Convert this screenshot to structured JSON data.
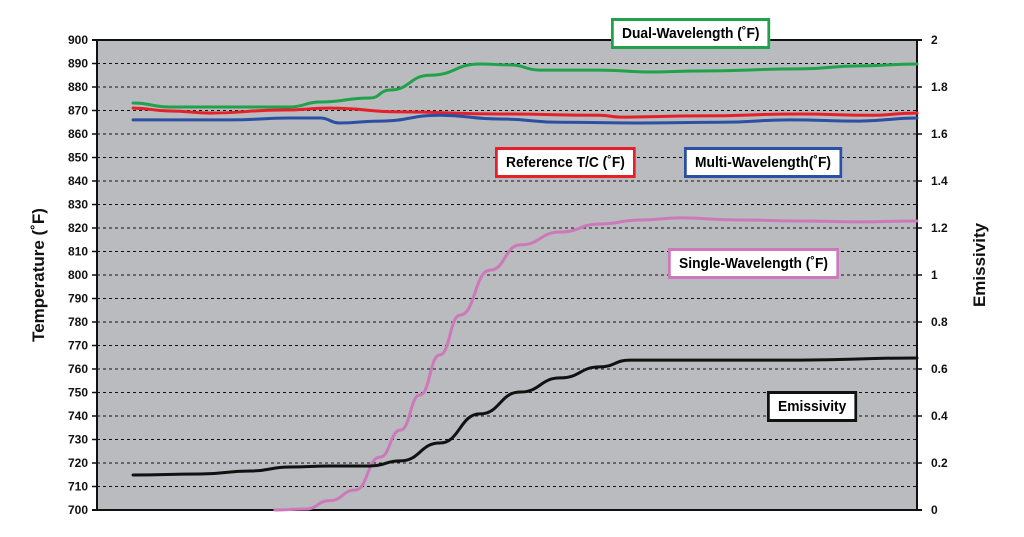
{
  "chart_data": {
    "type": "line",
    "ylabel": "Temperature (˚F)",
    "y2label": "Emissivity",
    "ylim": [
      700,
      900
    ],
    "y2lim": [
      0,
      2
    ],
    "yticks": [
      "700",
      "710",
      "720",
      "730",
      "740",
      "750",
      "760",
      "770",
      "780",
      "790",
      "800",
      "810",
      "820",
      "830",
      "840",
      "850",
      "860",
      "870",
      "880",
      "890",
      "900"
    ],
    "y2ticks": [
      "0",
      "0.2",
      "0.4",
      "0.6",
      "0.8",
      "1",
      "1.2",
      "1.4",
      "1.6",
      "1.8",
      "2"
    ],
    "xlim": [
      0,
      100
    ],
    "grid": "horizontal dashed",
    "background": "#b9bbbe",
    "series": [
      {
        "name": "Dual-Wavelength (˚F)",
        "color": "#1fa24a",
        "axis": "left",
        "x": [
          4.4,
          8.9,
          18.7,
          23.5,
          27.2,
          33.3,
          35.7,
          40.6,
          46.7,
          50.4,
          54,
          61.3,
          67.4,
          73.5,
          85.7,
          93,
          100
        ],
        "y": [
          873.2,
          871.5,
          871.5,
          871.5,
          873.6,
          875.3,
          878.7,
          885,
          889.8,
          889.4,
          887.2,
          887.2,
          886.4,
          886.8,
          887.7,
          889,
          889.8
        ]
      },
      {
        "name": "Reference T/C (˚F)",
        "color": "#e5202a",
        "axis": "left",
        "x": [
          4.4,
          8.9,
          13.8,
          22.6,
          28.4,
          37,
          49.1,
          61.3,
          63.8,
          73.5,
          85.7,
          94.3,
          100
        ],
        "y": [
          871,
          869.8,
          868.9,
          870.2,
          871,
          869.4,
          868.5,
          868,
          867.2,
          867.7,
          868.5,
          868,
          868.9
        ]
      },
      {
        "name": "Multi-Wavelength(˚F)",
        "color": "#2b4fa2",
        "axis": "left",
        "x": [
          4.4,
          16.2,
          23.5,
          27.2,
          29.6,
          34.5,
          41.8,
          49.1,
          56.5,
          66.2,
          76,
          84.5,
          93,
          100
        ],
        "y": [
          866,
          866,
          866.8,
          866.8,
          864.7,
          865.5,
          868,
          866.4,
          865,
          864.7,
          865,
          866,
          865.5,
          866.8
        ]
      },
      {
        "name": "Single-Wavelength (˚F)",
        "color": "#cc78bb",
        "axis": "left",
        "x": [
          21.7,
          25.4,
          28.4,
          31.5,
          34.5,
          37,
          39.4,
          41.8,
          44.3,
          47.9,
          51.6,
          56.5,
          61.3,
          66.2,
          71.1,
          78.4,
          85.7,
          93,
          100
        ],
        "y": [
          700,
          700.4,
          704,
          708.5,
          722.5,
          734,
          749,
          766,
          783,
          802,
          812.8,
          818.3,
          821.7,
          823.4,
          824.3,
          823.4,
          823,
          822.6,
          823
        ]
      },
      {
        "name": "Emissivity",
        "color": "#111111",
        "axis": "right",
        "x": [
          4.4,
          12.6,
          18.7,
          23.5,
          28.4,
          33.3,
          37,
          41.8,
          46.7,
          51.6,
          56.5,
          61.3,
          65,
          73.5,
          85.7,
          100
        ],
        "y": [
          0.149,
          0.153,
          0.166,
          0.183,
          0.187,
          0.187,
          0.209,
          0.285,
          0.409,
          0.502,
          0.562,
          0.609,
          0.638,
          0.638,
          0.638,
          0.647
        ]
      }
    ]
  }
}
